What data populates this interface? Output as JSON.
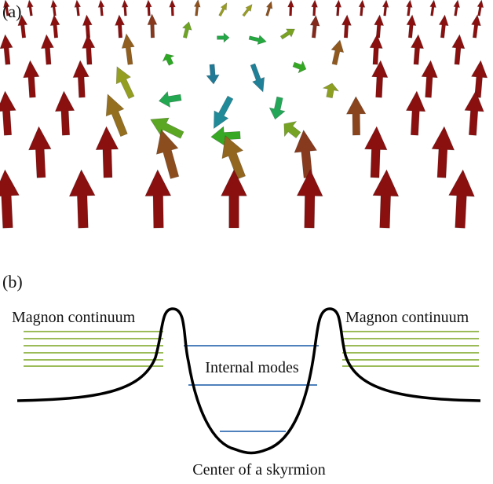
{
  "panels": [
    {
      "label": "(a)"
    },
    {
      "label": "(b)",
      "labels": {
        "left": "Magnon continuum",
        "right": "Magnon continuum",
        "middle": "Internal modes",
        "bottom": "Center of a skyrmion"
      }
    }
  ]
}
